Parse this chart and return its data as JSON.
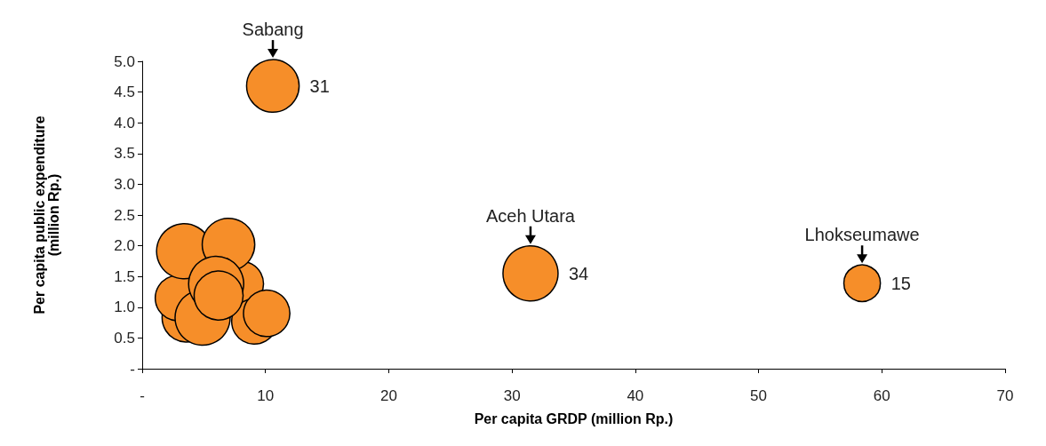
{
  "chart_data": {
    "type": "bubble",
    "xlabel": "Per capita GRDP (million Rp.)",
    "ylabel": "Per capita public expenditure\n(million Rp.)",
    "series": [
      {
        "color": "#f68e29",
        "x": [
          3.6,
          2.9,
          4.9,
          8.0,
          9.1,
          10.1,
          3.4,
          7.0,
          6.0,
          6.2,
          10.6,
          31.5,
          58.4
        ],
        "values": [
          0.83,
          1.15,
          0.83,
          1.38,
          0.77,
          0.9,
          1.91,
          2.02,
          1.38,
          1.19,
          4.6,
          1.55,
          1.39
        ],
        "sizes": [
          0.79,
          0.68,
          1,
          0.68,
          0.68,
          0.71,
          1,
          0.91,
          1,
          0.79,
          0.91,
          1,
          0.44
        ]
      }
    ],
    "annotations": [
      {
        "text": "Sabang",
        "x": 10.6,
        "y": 4.6
      },
      {
        "text": "Aceh Utara",
        "x": 31.5,
        "y": 1.55
      },
      {
        "text": "Lhokseumawe",
        "x": 58.4,
        "y": 1.39
      },
      {
        "text": "31",
        "x": 10.6,
        "y": 4.6
      },
      {
        "text": "34",
        "x": 31.5,
        "y": 1.55
      },
      {
        "text": "15",
        "x": 58.4,
        "y": 1.39
      }
    ],
    "xlim": [
      0,
      70
    ],
    "xticks": [
      {
        "value": 0,
        "label": "-"
      },
      10,
      20,
      30,
      40,
      50,
      60,
      70
    ],
    "ylim": [
      0,
      5
    ],
    "yticks": [
      {
        "value": 0,
        "label": "-"
      },
      {
        "value": 0.5,
        "label": "0.5"
      },
      {
        "value": 1,
        "label": "1.0"
      },
      {
        "value": 1.5,
        "label": "1.5"
      },
      {
        "value": 2,
        "label": "2.0"
      },
      {
        "value": 2.5,
        "label": "2.5"
      },
      {
        "value": 3,
        "label": "3.0"
      },
      {
        "value": 3.5,
        "label": "3.5"
      },
      {
        "value": 4,
        "label": "4.0"
      },
      {
        "value": 4.5,
        "label": "4.5"
      },
      {
        "value": 5,
        "label": "5.0"
      }
    ],
    "grid": false,
    "marker": "circle"
  }
}
